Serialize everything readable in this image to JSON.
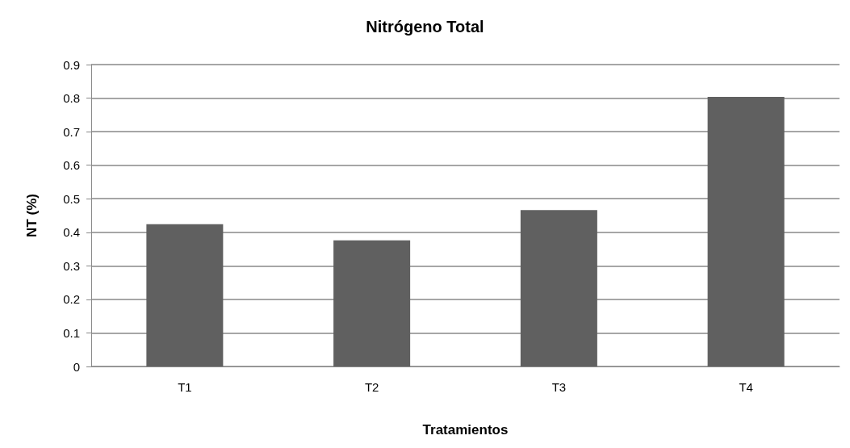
{
  "chart_data": {
    "type": "bar",
    "title": "Nitrógeno Total",
    "xlabel": "Tratamientos",
    "ylabel": "NT (%)",
    "categories": [
      "T1",
      "T2",
      "T3",
      "T4"
    ],
    "values": [
      0.424,
      0.376,
      0.466,
      0.804
    ],
    "color": "#606060",
    "ylim": [
      0,
      0.9
    ],
    "yticks": [
      0,
      0.1,
      0.2,
      0.3,
      0.4,
      0.5,
      0.6,
      0.7,
      0.8,
      0.9
    ],
    "grid": "y"
  }
}
